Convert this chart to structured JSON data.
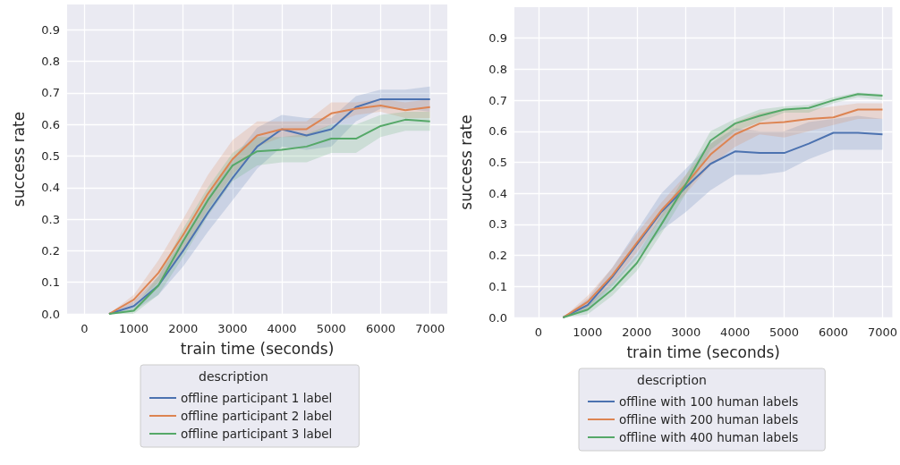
{
  "chart_data": [
    {
      "type": "line",
      "xlabel": "train time (seconds)",
      "ylabel": "success rate",
      "legend_title": "description",
      "legend": "bottom",
      "grid": true,
      "x": [
        500,
        1000,
        1500,
        2000,
        2500,
        3000,
        3500,
        4000,
        4500,
        5000,
        5500,
        6000,
        6500,
        7000
      ],
      "xlim": [
        -350,
        7350
      ],
      "xticks": [
        0,
        1000,
        2000,
        3000,
        4000,
        5000,
        6000,
        7000
      ],
      "ylim": [
        0,
        0.98
      ],
      "yticks": [
        {
          "value": 0,
          "label": "0.0"
        },
        0.1,
        0.2,
        0.3,
        0.4,
        0.5,
        0.6,
        0.7,
        0.8,
        0.9
      ],
      "series": [
        {
          "name": "offline participant 1 label",
          "color": "#4c72b0",
          "values": [
            0,
            0.025,
            0.09,
            0.2,
            0.32,
            0.43,
            0.53,
            0.585,
            0.565,
            0.585,
            0.655,
            0.68,
            0.68,
            0.68
          ],
          "lower": [
            0,
            0.01,
            0.06,
            0.15,
            0.26,
            0.36,
            0.46,
            0.53,
            0.52,
            0.53,
            0.61,
            0.65,
            0.65,
            0.64
          ],
          "upper": [
            0,
            0.04,
            0.12,
            0.24,
            0.37,
            0.49,
            0.59,
            0.63,
            0.62,
            0.62,
            0.69,
            0.71,
            0.71,
            0.72
          ]
        },
        {
          "name": "offline participant 2 label",
          "color": "#dd8452",
          "values": [
            0,
            0.045,
            0.13,
            0.25,
            0.38,
            0.49,
            0.565,
            0.585,
            0.585,
            0.635,
            0.65,
            0.66,
            0.645,
            0.655
          ],
          "lower": [
            0,
            0.03,
            0.1,
            0.2,
            0.33,
            0.44,
            0.53,
            0.56,
            0.56,
            0.6,
            0.63,
            0.64,
            0.62,
            0.62
          ],
          "upper": [
            0,
            0.06,
            0.17,
            0.3,
            0.44,
            0.55,
            0.61,
            0.61,
            0.61,
            0.67,
            0.67,
            0.68,
            0.67,
            0.68
          ]
        },
        {
          "name": "offline participant 3 label",
          "color": "#55a868",
          "values": [
            0,
            0.01,
            0.09,
            0.23,
            0.36,
            0.47,
            0.515,
            0.52,
            0.53,
            0.555,
            0.555,
            0.595,
            0.615,
            0.61
          ],
          "lower": [
            0,
            0,
            0.06,
            0.18,
            0.31,
            0.42,
            0.47,
            0.48,
            0.48,
            0.51,
            0.51,
            0.56,
            0.58,
            0.58
          ],
          "upper": [
            0,
            0.02,
            0.12,
            0.27,
            0.4,
            0.51,
            0.56,
            0.56,
            0.57,
            0.6,
            0.6,
            0.63,
            0.64,
            0.64
          ]
        }
      ]
    },
    {
      "type": "line",
      "xlabel": "train time (seconds)",
      "ylabel": "success rate",
      "legend_title": "description",
      "legend": "bottom",
      "grid": true,
      "x": [
        500,
        1000,
        1500,
        2000,
        2500,
        3000,
        3500,
        4000,
        4500,
        5000,
        5500,
        6000,
        6500,
        7000
      ],
      "xlim": [
        -490,
        7200
      ],
      "xticks": [
        0,
        1000,
        2000,
        3000,
        4000,
        5000,
        6000,
        7000
      ],
      "ylim": [
        0,
        1.0
      ],
      "yticks": [
        {
          "value": 0,
          "label": "0.0"
        },
        0.1,
        0.2,
        0.3,
        0.4,
        0.5,
        0.6,
        0.7,
        0.8,
        0.9
      ],
      "series": [
        {
          "name": "offline with 100 human labels",
          "color": "#4c72b0",
          "values": [
            0,
            0.04,
            0.13,
            0.235,
            0.34,
            0.42,
            0.495,
            0.535,
            0.53,
            0.53,
            0.56,
            0.595,
            0.595,
            0.59
          ],
          "lower": [
            0,
            0.02,
            0.1,
            0.19,
            0.28,
            0.34,
            0.41,
            0.46,
            0.46,
            0.47,
            0.51,
            0.54,
            0.54,
            0.54
          ],
          "upper": [
            0,
            0.06,
            0.16,
            0.28,
            0.4,
            0.48,
            0.56,
            0.61,
            0.6,
            0.6,
            0.63,
            0.64,
            0.65,
            0.64
          ]
        },
        {
          "name": "offline with 200 human labels",
          "color": "#dd8452",
          "values": [
            0,
            0.05,
            0.135,
            0.24,
            0.345,
            0.43,
            0.525,
            0.59,
            0.625,
            0.63,
            0.64,
            0.645,
            0.67,
            0.67
          ],
          "lower": [
            0,
            0.03,
            0.11,
            0.21,
            0.32,
            0.4,
            0.49,
            0.55,
            0.59,
            0.58,
            0.6,
            0.62,
            0.64,
            0.64
          ],
          "upper": [
            0,
            0.07,
            0.16,
            0.27,
            0.37,
            0.46,
            0.56,
            0.63,
            0.66,
            0.67,
            0.67,
            0.68,
            0.69,
            0.69
          ]
        },
        {
          "name": "offline with 400 human labels",
          "color": "#55a868",
          "values": [
            0,
            0.025,
            0.09,
            0.175,
            0.3,
            0.43,
            0.57,
            0.625,
            0.65,
            0.67,
            0.675,
            0.7,
            0.72,
            0.715
          ],
          "lower": [
            0,
            0.01,
            0.07,
            0.15,
            0.27,
            0.4,
            0.54,
            0.6,
            0.63,
            0.66,
            0.66,
            0.69,
            0.71,
            0.7
          ],
          "upper": [
            0,
            0.04,
            0.11,
            0.2,
            0.33,
            0.46,
            0.6,
            0.64,
            0.67,
            0.68,
            0.685,
            0.71,
            0.725,
            0.72
          ]
        }
      ]
    }
  ]
}
